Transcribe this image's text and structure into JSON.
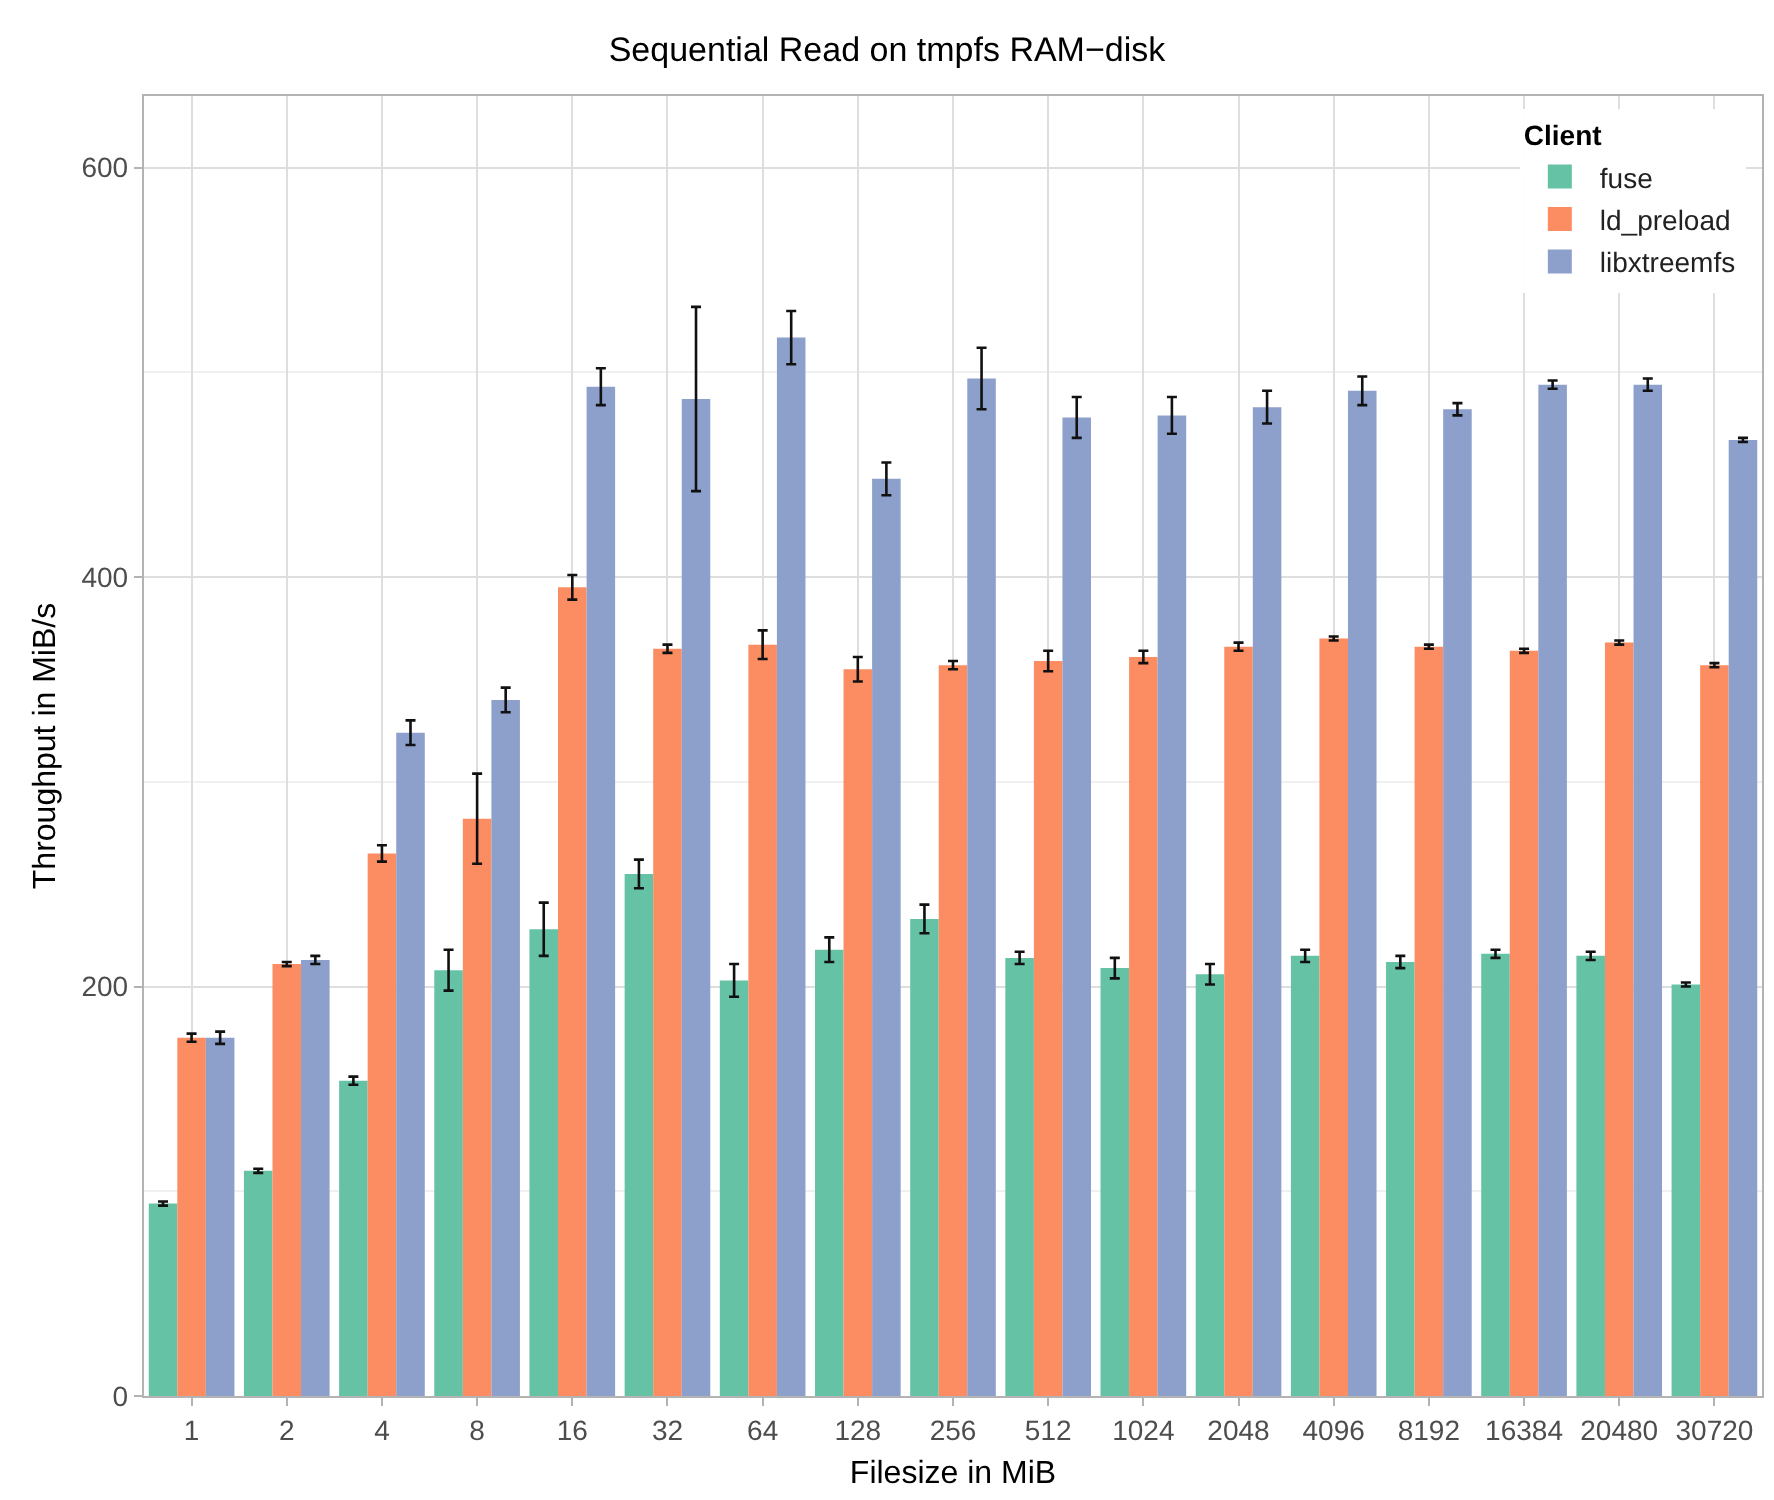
{
  "chart_data": {
    "type": "bar",
    "title": "Sequential Read on tmpfs RAM−disk",
    "xlabel": "Filesize in MiB",
    "ylabel": "Throughput in MiB/s",
    "legend_title": "Client",
    "legend": "top right",
    "grid": true,
    "categories": [
      "1",
      "2",
      "4",
      "8",
      "16",
      "32",
      "64",
      "128",
      "256",
      "512",
      "1024",
      "2048",
      "4096",
      "8192",
      "16384",
      "20480",
      "30720"
    ],
    "ylim": [
      0,
      635
    ],
    "yticks": [
      0,
      {
        "value": 100,
        "label": null
      },
      200,
      {
        "value": 300,
        "label": null
      },
      400,
      {
        "value": 500,
        "label": null
      },
      600
    ],
    "series": [
      {
        "name": "fuse",
        "color": "#66c2a5",
        "values": [
          94,
          110,
          154,
          208,
          228,
          255,
          203,
          218,
          233,
          214,
          209,
          206,
          215,
          212,
          216,
          215,
          201
        ],
        "errors": [
          1,
          1,
          2,
          10,
          13,
          7,
          8,
          6,
          7,
          3,
          5,
          5,
          3,
          3,
          2,
          2,
          1
        ]
      },
      {
        "name": "ld_preload",
        "color": "#fc8d62",
        "values": [
          175,
          211,
          265,
          282,
          395,
          365,
          367,
          355,
          357,
          359,
          361,
          366,
          370,
          366,
          364,
          368,
          357
        ],
        "errors": [
          2,
          1,
          4,
          22,
          6,
          2,
          7,
          6,
          2,
          5,
          3,
          2,
          1,
          1,
          1,
          1,
          1
        ]
      },
      {
        "name": "libxtreemfs",
        "color": "#8da0cb",
        "values": [
          175,
          213,
          324,
          340,
          493,
          487,
          517,
          448,
          497,
          478,
          479,
          483,
          491,
          482,
          494,
          494,
          467
        ],
        "errors": [
          3,
          2,
          6,
          6,
          9,
          45,
          13,
          8,
          15,
          10,
          9,
          8,
          7,
          3,
          2,
          3,
          1
        ]
      }
    ]
  }
}
